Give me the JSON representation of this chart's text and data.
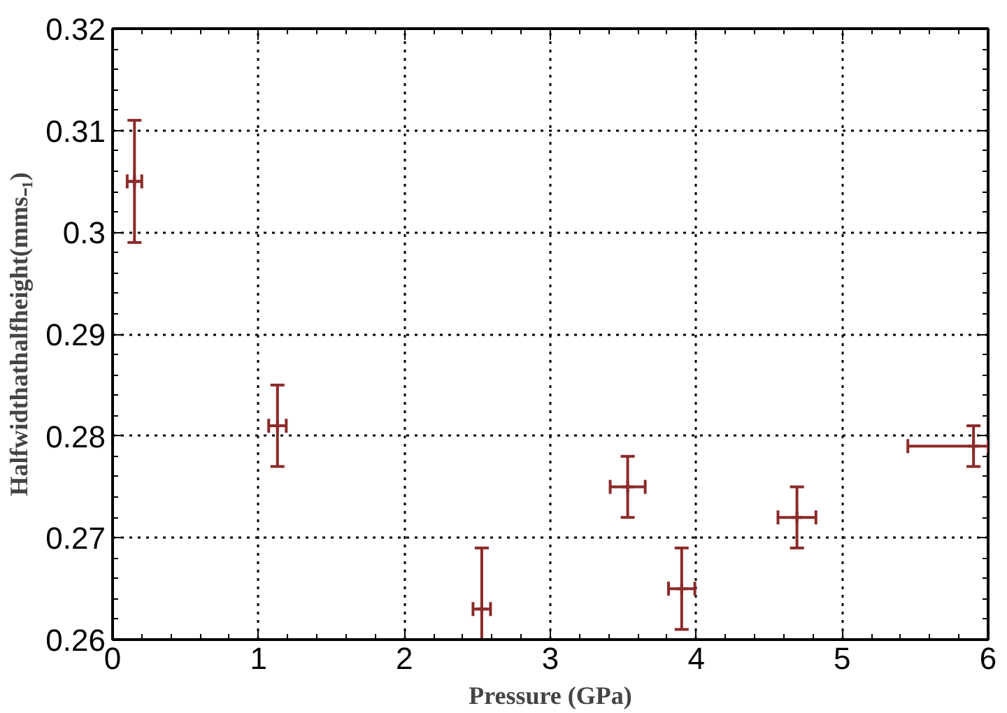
{
  "chart_data": {
    "type": "scatter",
    "xlabel": "Pressure (GPa)",
    "ylabel": "Halfwidthathalfheight(mms₋₁)",
    "x": [
      0.15,
      1.13,
      2.53,
      3.53,
      3.9,
      4.69,
      5.9
    ],
    "series": [
      {
        "color": "#8b2a2a",
        "values": [
          0.305,
          0.281,
          0.263,
          0.275,
          0.265,
          0.272,
          0.279
        ],
        "errors": [
          [
            0.299,
            0.311
          ],
          [
            0.277,
            0.285
          ],
          [
            0.26,
            0.269
          ],
          0.003,
          [
            0.261,
            0.269
          ],
          0.003,
          [
            0.277,
            0.281
          ]
        ],
        "xerrors": [
          0.05,
          0.06,
          0.06,
          0.12,
          0.09,
          0.13,
          [
            5.45,
            6
          ]
        ]
      }
    ],
    "xlim": [
      0,
      6
    ],
    "ylim": [
      0.26,
      0.32
    ],
    "xticks": [
      0,
      1,
      2,
      3,
      4,
      5,
      6
    ],
    "yticks": [
      0.26,
      0.27,
      0.28,
      0.29,
      0.3,
      0.31,
      0.32
    ],
    "grid": true,
    "marker": "cross"
  }
}
